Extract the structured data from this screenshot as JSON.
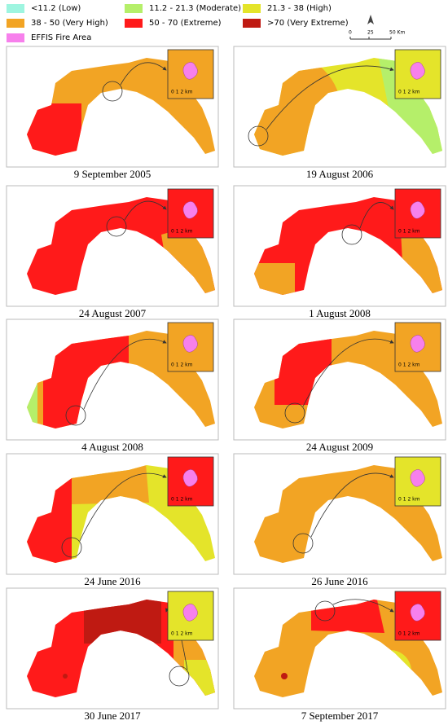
{
  "legend": {
    "items": [
      "<11.2 (Low)",
      "11.2 - 21.3 (Moderate)",
      "21.3 - 38 (High)",
      "38 - 50 (Very High)",
      "50 - 70 (Extreme)",
      ">70 (Very Extreme)",
      "EFFIS Fire Area"
    ]
  },
  "scale_bar": {
    "labels": [
      "0",
      "25",
      "50 Km"
    ]
  },
  "panels": [
    {
      "caption": "9 September 2005",
      "inset_scale": "0 1 2 km"
    },
    {
      "caption": "19 August 2006",
      "inset_scale": "0 1 2 km"
    },
    {
      "caption": "24 August 2007",
      "inset_scale": "0 1 2 km"
    },
    {
      "caption": "1 August 2008",
      "inset_scale": "0 1 2 km"
    },
    {
      "caption": "4 August 2008",
      "inset_scale": "0 1 2 km"
    },
    {
      "caption": "24 August 2009",
      "inset_scale": "0 1 2 km"
    },
    {
      "caption": "24 June 2016",
      "inset_scale": "0 1 2 km"
    },
    {
      "caption": "26 June 2016",
      "inset_scale": "0 1 2 km"
    },
    {
      "caption": "30 June 2017",
      "inset_scale": "0 1 2 km"
    },
    {
      "caption": "7 September 2017",
      "inset_scale": "0 1 2 km"
    }
  ]
}
